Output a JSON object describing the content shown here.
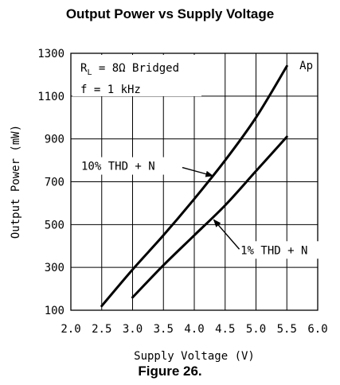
{
  "title": "Output Power vs Supply Voltage",
  "caption": "Figure 26.",
  "chart_data": {
    "type": "line",
    "xlabel": "Supply Voltage (V)",
    "ylabel": "Output Power (mW)",
    "xlim": [
      2.0,
      6.0
    ],
    "ylim": [
      100,
      1300
    ],
    "xticks": [
      "2.0",
      "2.5",
      "3.0",
      "3.5",
      "4.0",
      "4.5",
      "5.0",
      "5.5",
      "6.0"
    ],
    "yticks": [
      "100",
      "300",
      "500",
      "700",
      "900",
      "1100",
      "1300"
    ],
    "grid": true,
    "series": [
      {
        "name": "10% THD + N",
        "x": [
          2.5,
          3.0,
          3.5,
          4.0,
          4.5,
          5.0,
          5.5
        ],
        "y": [
          120,
          290,
          450,
          620,
          800,
          1000,
          1240
        ]
      },
      {
        "name": "1% THD + N",
        "x": [
          3.0,
          3.5,
          4.0,
          4.5,
          5.0,
          5.5
        ],
        "y": [
          160,
          310,
          450,
          590,
          750,
          910
        ]
      }
    ],
    "annotations": {
      "condition_load_prefix": "R",
      "condition_load_sub": "L",
      "condition_load_rest": " = 8Ω Bridged",
      "condition_freq": "f = 1 kHz",
      "corner_tag": "Ap",
      "label_10pct": "10% THD + N",
      "label_1pct": "1% THD + N"
    }
  }
}
